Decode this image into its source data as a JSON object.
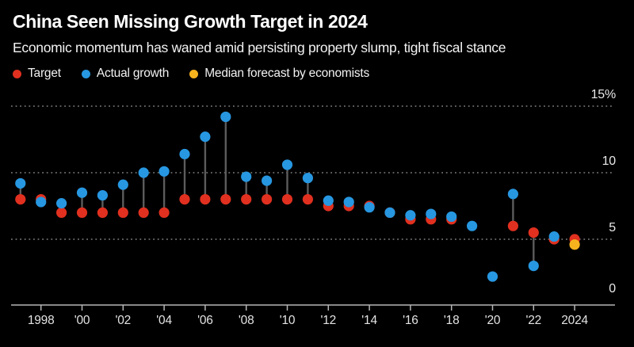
{
  "title": "China Seen Missing Growth Target in 2024",
  "subtitle": "Economic momentum has waned amid persisting property slump, tight fiscal stance",
  "colors": {
    "target": "#e1301f",
    "actual": "#2797e1",
    "forecast": "#f7b31e",
    "gridline": "#9a9a9a",
    "stem": "#5c5c5c",
    "axis": "#b5b5b5"
  },
  "chart_data": {
    "type": "scatter",
    "title": "China Seen Missing Growth Target in 2024",
    "unit": "%",
    "legend_position": "top",
    "grid": "horizontal dotted at 5, 10, 15",
    "ylim": [
      0,
      15
    ],
    "x": [
      1997,
      1998,
      1999,
      2000,
      2001,
      2002,
      2003,
      2004,
      2005,
      2006,
      2007,
      2008,
      2009,
      2010,
      2011,
      2012,
      2013,
      2014,
      2015,
      2016,
      2017,
      2018,
      2019,
      2020,
      2021,
      2022,
      2023,
      2024
    ],
    "series": [
      {
        "name": "Target",
        "color": "#e1301f",
        "values": [
          8,
          8,
          7,
          7,
          7,
          7,
          7,
          7,
          8,
          8,
          8,
          8,
          8,
          8,
          8,
          7.5,
          7.5,
          7.5,
          7,
          6.5,
          6.5,
          6.5,
          null,
          null,
          6,
          5.5,
          5,
          5
        ]
      },
      {
        "name": "Actual growth",
        "color": "#2797e1",
        "values": [
          9.2,
          7.8,
          7.7,
          8.5,
          8.3,
          9.1,
          10,
          10.1,
          11.4,
          12.7,
          14.2,
          9.7,
          9.4,
          10.6,
          9.6,
          7.9,
          7.8,
          7.4,
          7,
          6.8,
          6.9,
          6.7,
          6,
          2.2,
          8.4,
          3,
          5.2,
          null
        ]
      },
      {
        "name": "Median forecast by economists",
        "color": "#f7b31e",
        "values": [
          null,
          null,
          null,
          null,
          null,
          null,
          null,
          null,
          null,
          null,
          null,
          null,
          null,
          null,
          null,
          null,
          null,
          null,
          null,
          null,
          null,
          null,
          null,
          null,
          null,
          null,
          null,
          4.6
        ]
      }
    ],
    "gridline_values": [
      5,
      10,
      15
    ],
    "yticks": [
      {
        "value": 0,
        "label": "0"
      },
      {
        "value": 5,
        "label": "5"
      },
      {
        "value": 10,
        "label": "10"
      },
      {
        "value": 15,
        "label": "15%"
      }
    ],
    "xticks": [
      {
        "value": 1998,
        "label": "1998"
      },
      {
        "value": 2000,
        "label": "'00"
      },
      {
        "value": 2002,
        "label": "'02"
      },
      {
        "value": 2004,
        "label": "'04"
      },
      {
        "value": 2006,
        "label": "'06"
      },
      {
        "value": 2008,
        "label": "'08"
      },
      {
        "value": 2010,
        "label": "'10"
      },
      {
        "value": 2012,
        "label": "'12"
      },
      {
        "value": 2014,
        "label": "'14"
      },
      {
        "value": 2016,
        "label": "'16"
      },
      {
        "value": 2018,
        "label": "'18"
      },
      {
        "value": 2020,
        "label": "'20"
      },
      {
        "value": 2022,
        "label": "'22"
      },
      {
        "value": 2024,
        "label": "2024"
      }
    ]
  }
}
